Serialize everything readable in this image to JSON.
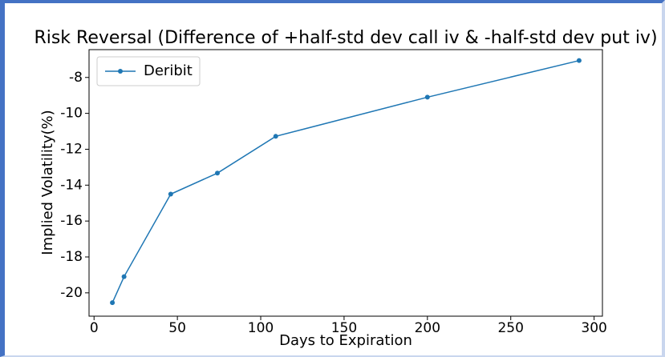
{
  "chart_data": {
    "type": "line",
    "title": "Risk Reversal (Difference of +half-std dev call iv & -half-std dev put iv)",
    "x_label": "Days to Expiration",
    "y_label": "Implied Volatility(%)",
    "series": [
      {
        "name": "Deribit",
        "color": "#1f77b4",
        "x": [
          11,
          18,
          46,
          74,
          109,
          200,
          291
        ],
        "values": [
          -20.55,
          -19.1,
          -14.5,
          -13.33,
          -11.28,
          -9.1,
          -7.06
        ]
      }
    ],
    "xlim": [
      -3,
      305
    ],
    "xticks": [
      0,
      50,
      100,
      150,
      200,
      250,
      300
    ],
    "ylim": [
      -21.3,
      -6.45
    ],
    "yticks": [
      -20,
      -18,
      -16,
      -14,
      -12,
      -10,
      -8
    ],
    "legend": "upper left",
    "grid": false
  }
}
